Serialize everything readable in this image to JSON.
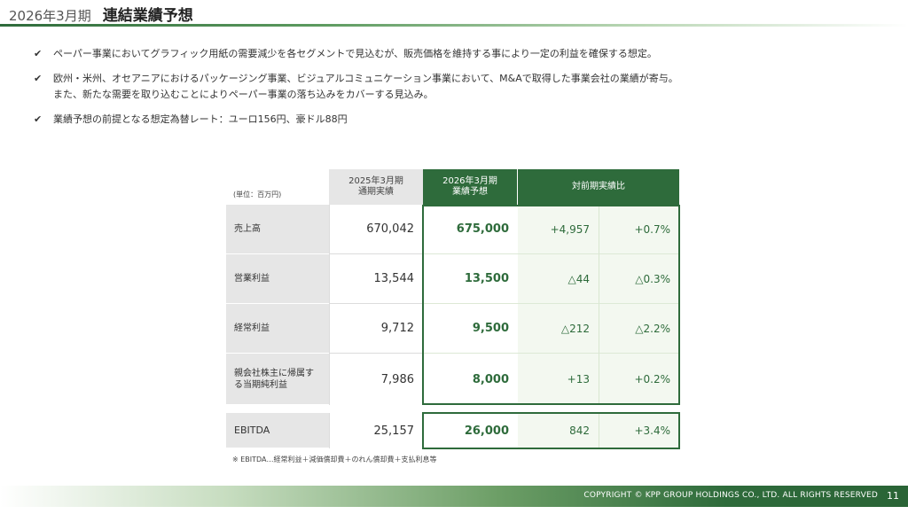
{
  "header": {
    "period": "2026年3月期",
    "title": "連結業績予想",
    "rule_color": "#2e6b3b"
  },
  "bullets": [
    {
      "icon": "check-icon",
      "lines": [
        "ペーパー事業においてグラフィック用紙の需要減少を各セグメントで見込むが、販売価格を維持する事により一定の利益を確保する想定。"
      ]
    },
    {
      "icon": "check-icon",
      "lines": [
        "欧州・米州、オセアニアにおけるパッケージング事業、ビジュアルコミュニケーション事業において、M&Aで取得した事業会社の業績が寄与。",
        "また、新たな需要を取り込むことによりペーパー事業の落ち込みをカバーする見込み。"
      ]
    },
    {
      "icon": "check-icon",
      "lines": [
        "業績予想の前提となる想定為替レート：ユーロ156円、豪ドル88円"
      ]
    }
  ],
  "table": {
    "unit": "(単位：百万円)",
    "headers": {
      "prior": [
        "2025年3月期",
        "通期実績"
      ],
      "forecast": [
        "2026年3月期",
        "業績予想"
      ],
      "comparison": "対前期実績比"
    },
    "rows": [
      {
        "label": "売上高",
        "prior": "670,042",
        "forecast": "675,000",
        "diff": "+4,957",
        "pct": "+0.7%"
      },
      {
        "label": "営業利益",
        "prior": "13,544",
        "forecast": "13,500",
        "diff": "△44",
        "pct": "△0.3%"
      },
      {
        "label": "経常利益",
        "prior": "9,712",
        "forecast": "9,500",
        "diff": "△212",
        "pct": "△2.2%"
      },
      {
        "label": "親会社株主に帰属する当期純利益",
        "prior": "7,986",
        "forecast": "8,000",
        "diff": "+13",
        "pct": "+0.2%"
      }
    ],
    "ebitda": {
      "label": "EBITDA",
      "prior": "25,157",
      "forecast": "26,000",
      "diff": "842",
      "pct": "+3.4%"
    },
    "note": "※ EBITDA…経常利益＋減価償却費＋のれん償却費＋支払利息等",
    "accent_color": "#2e6b3b"
  },
  "footer": {
    "copyright": "COPYRIGHT © KPP GROUP HOLDINGS CO., LTD. ALL RIGHTS RESERVED",
    "page": "11"
  }
}
